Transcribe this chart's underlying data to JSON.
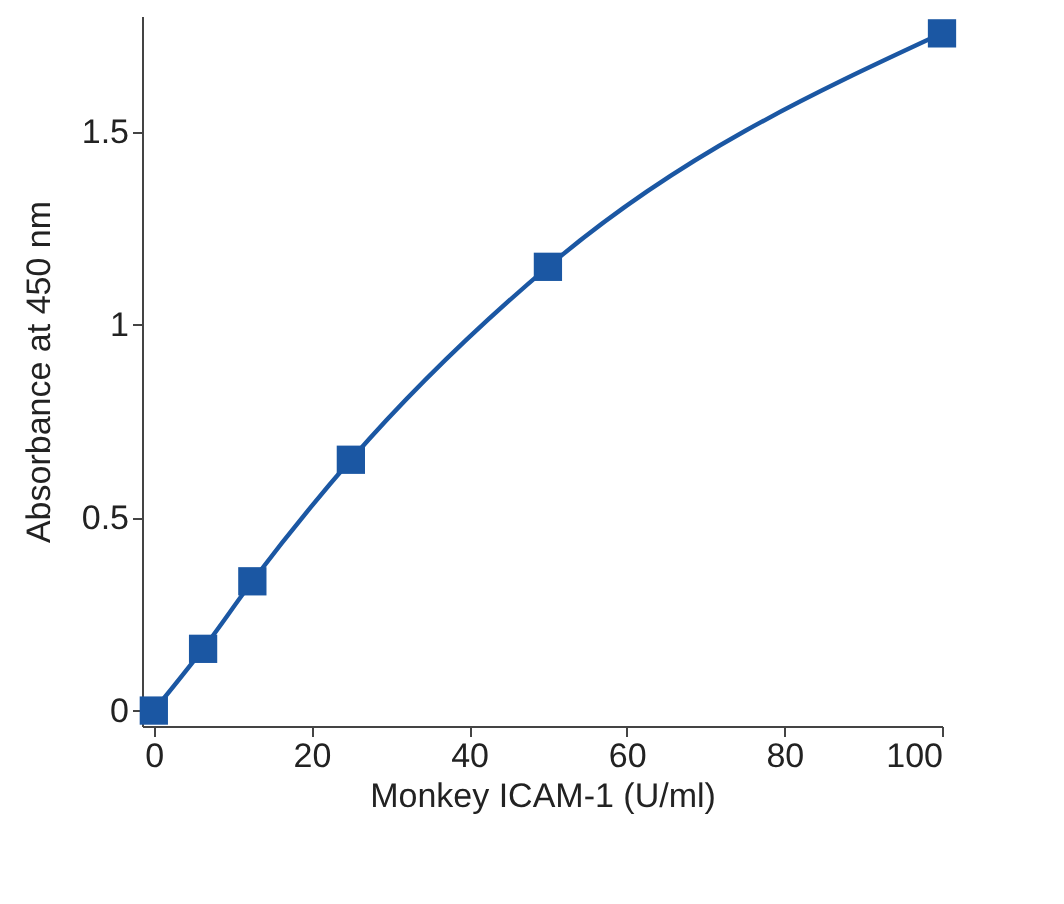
{
  "chart_data": {
    "type": "line",
    "xlabel": "Monkey ICAM-1 (U/ml)",
    "ylabel": "Absorbance at 450 nm",
    "x": [
      0,
      6.25,
      12.5,
      25,
      50,
      100
    ],
    "series": [
      {
        "color": "#1b57a3",
        "values": [
          0,
          0.16,
          0.335,
          0.65,
          1.15,
          1.755
        ]
      }
    ],
    "xlim": [
      -1.5,
      100
    ],
    "xticks": [
      0,
      20,
      40,
      60,
      80,
      100
    ],
    "ylim": [
      -0.04,
      1.8
    ],
    "yticks": [
      0,
      0.5,
      1,
      1.5
    ],
    "marker": "square",
    "grid": false
  }
}
